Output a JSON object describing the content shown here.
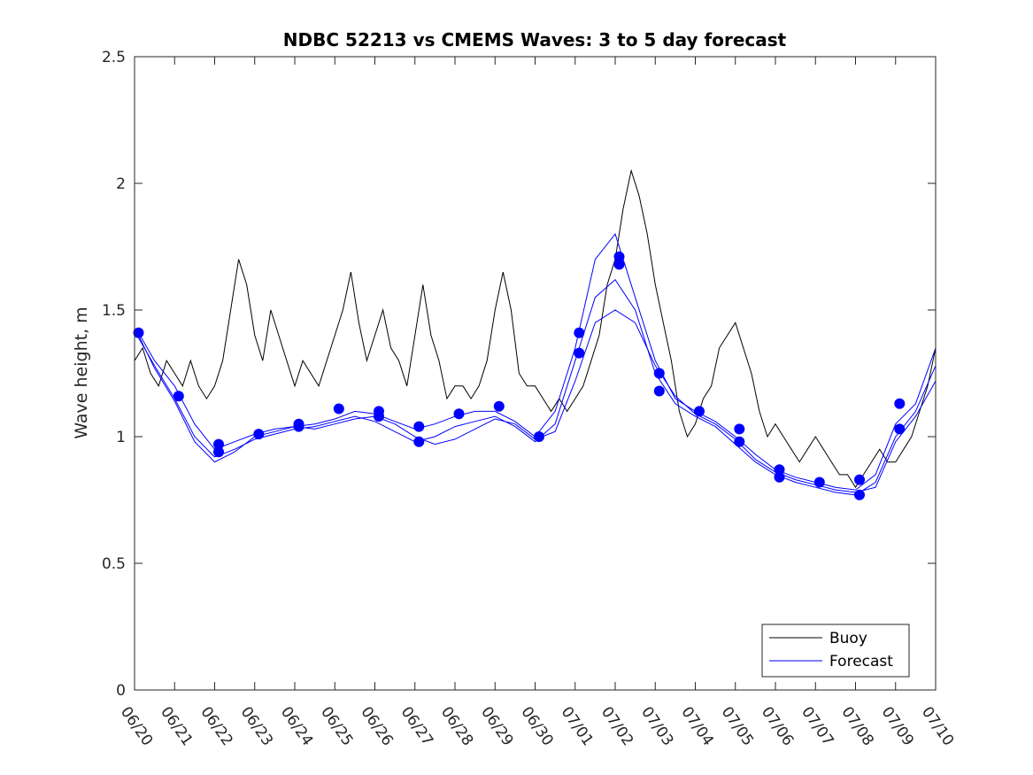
{
  "chart_data": {
    "type": "line",
    "title": "NDBC 52213 vs CMEMS Waves: 3 to 5 day forecast",
    "xlabel": "",
    "ylabel": "Wave height, m",
    "ylim": [
      0,
      2.5
    ],
    "xlim": [
      0,
      20
    ],
    "y_ticks": [
      "0",
      "0.5",
      "1",
      "1.5",
      "2",
      "2.5"
    ],
    "x_ticks": [
      "06/20",
      "06/21",
      "06/22",
      "06/23",
      "06/24",
      "06/25",
      "06/26",
      "06/27",
      "06/28",
      "06/29",
      "06/30",
      "07/01",
      "07/02",
      "07/03",
      "07/04",
      "07/05",
      "07/06",
      "07/07",
      "07/08",
      "07/09",
      "07/10"
    ],
    "grid": false,
    "legend_position": "bottom-right",
    "colors": {
      "buoy": "#000000",
      "forecast": "#0000ff"
    },
    "series": [
      {
        "name": "Buoy",
        "x": [
          0,
          0.2,
          0.4,
          0.6,
          0.8,
          1.0,
          1.2,
          1.4,
          1.6,
          1.8,
          2.0,
          2.2,
          2.4,
          2.6,
          2.8,
          3.0,
          3.2,
          3.4,
          3.6,
          3.8,
          4.0,
          4.2,
          4.4,
          4.6,
          4.8,
          5.0,
          5.2,
          5.4,
          5.6,
          5.8,
          6.0,
          6.2,
          6.4,
          6.6,
          6.8,
          7.0,
          7.2,
          7.4,
          7.6,
          7.8,
          8.0,
          8.2,
          8.4,
          8.6,
          8.8,
          9.0,
          9.2,
          9.4,
          9.6,
          9.8,
          10.0,
          10.2,
          10.4,
          10.6,
          10.8,
          11.0,
          11.2,
          11.4,
          11.6,
          11.8,
          12.0,
          12.2,
          12.4,
          12.6,
          12.8,
          13.0,
          13.2,
          13.4,
          13.6,
          13.8,
          14.0,
          14.2,
          14.4,
          14.6,
          14.8,
          15.0,
          15.2,
          15.4,
          15.6,
          15.8,
          16.0,
          16.2,
          16.4,
          16.6,
          16.8,
          17.0,
          17.2,
          17.4,
          17.6,
          17.8,
          18.0,
          18.2,
          18.4,
          18.6,
          18.8,
          19.0,
          19.2,
          19.4,
          19.6,
          19.8,
          20.0
        ],
        "y": [
          1.3,
          1.35,
          1.25,
          1.2,
          1.3,
          1.25,
          1.2,
          1.3,
          1.2,
          1.15,
          1.2,
          1.3,
          1.5,
          1.7,
          1.6,
          1.4,
          1.3,
          1.5,
          1.4,
          1.3,
          1.2,
          1.3,
          1.25,
          1.2,
          1.3,
          1.4,
          1.5,
          1.65,
          1.45,
          1.3,
          1.4,
          1.5,
          1.35,
          1.3,
          1.2,
          1.4,
          1.6,
          1.4,
          1.3,
          1.15,
          1.2,
          1.2,
          1.15,
          1.2,
          1.3,
          1.5,
          1.65,
          1.5,
          1.25,
          1.2,
          1.2,
          1.15,
          1.1,
          1.15,
          1.1,
          1.15,
          1.2,
          1.3,
          1.4,
          1.6,
          1.7,
          1.9,
          2.05,
          1.95,
          1.8,
          1.6,
          1.45,
          1.3,
          1.1,
          1.0,
          1.05,
          1.15,
          1.2,
          1.35,
          1.4,
          1.45,
          1.35,
          1.25,
          1.1,
          1.0,
          1.05,
          1.0,
          0.95,
          0.9,
          0.95,
          1.0,
          0.95,
          0.9,
          0.85,
          0.85,
          0.8,
          0.85,
          0.9,
          0.95,
          0.9,
          0.9,
          0.95,
          1.0,
          1.1,
          1.2,
          1.35
        ]
      },
      {
        "name": "Forecast",
        "x": [
          0.1,
          0.5,
          1.0,
          1.5,
          2.0,
          2.5,
          3.0,
          3.5,
          4.0,
          4.5,
          5.0,
          5.5,
          6.0,
          6.5,
          7.0,
          7.5,
          8.0,
          8.5,
          9.0,
          9.5,
          10.0,
          10.5,
          11.0,
          11.5,
          12.0,
          12.5,
          13.0,
          13.5,
          14.0,
          14.5,
          15.0,
          15.5,
          16.0,
          16.5,
          17.0,
          17.5,
          18.0,
          18.5,
          19.0,
          19.5,
          20.0
        ],
        "y": [
          1.41,
          1.3,
          1.2,
          1.05,
          0.95,
          0.98,
          1.01,
          1.03,
          1.04,
          1.05,
          1.07,
          1.1,
          1.09,
          1.06,
          1.03,
          1.05,
          1.08,
          1.1,
          1.1,
          1.06,
          1.0,
          1.1,
          1.35,
          1.7,
          1.8,
          1.55,
          1.3,
          1.15,
          1.1,
          1.06,
          1.0,
          0.93,
          0.87,
          0.84,
          0.82,
          0.8,
          0.79,
          0.85,
          1.05,
          1.13,
          1.35
        ]
      },
      {
        "name": "",
        "x": [
          0.1,
          0.5,
          1.0,
          1.5,
          2.0,
          2.5,
          3.0,
          3.5,
          4.0,
          4.5,
          5.0,
          5.5,
          6.0,
          6.5,
          7.0,
          7.5,
          8.0,
          8.5,
          9.0,
          9.5,
          10.0,
          10.5,
          11.0,
          11.5,
          12.0,
          12.5,
          13.0,
          13.5,
          14.0,
          14.5,
          15.0,
          15.5,
          16.0,
          16.5,
          17.0,
          17.5,
          18.0,
          18.5,
          19.0,
          19.5,
          20.0
        ],
        "y": [
          1.39,
          1.28,
          1.15,
          1.0,
          0.92,
          0.95,
          0.99,
          1.01,
          1.03,
          1.04,
          1.06,
          1.08,
          1.06,
          1.02,
          0.98,
          1.0,
          1.04,
          1.06,
          1.08,
          1.04,
          0.98,
          1.05,
          1.3,
          1.55,
          1.62,
          1.5,
          1.25,
          1.13,
          1.08,
          1.04,
          0.97,
          0.9,
          0.85,
          0.82,
          0.8,
          0.78,
          0.77,
          0.82,
          1.0,
          1.1,
          1.28
        ]
      },
      {
        "name": "",
        "x": [
          0.1,
          0.5,
          1.0,
          1.5,
          2.0,
          2.5,
          3.0,
          3.5,
          4.0,
          4.5,
          5.0,
          5.5,
          6.0,
          6.5,
          7.0,
          7.5,
          8.0,
          8.5,
          9.0,
          9.5,
          10.0,
          10.5,
          11.0,
          11.5,
          12.0,
          12.5,
          13.0,
          13.5,
          14.0,
          14.5,
          15.0,
          15.5,
          16.0,
          16.5,
          17.0,
          17.5,
          18.0,
          18.5,
          19.0,
          19.5,
          20.0
        ],
        "y": [
          1.4,
          1.27,
          1.14,
          0.98,
          0.9,
          0.94,
          1.0,
          1.02,
          1.04,
          1.03,
          1.05,
          1.07,
          1.08,
          1.05,
          1.0,
          0.97,
          0.99,
          1.03,
          1.07,
          1.05,
          0.99,
          1.02,
          1.22,
          1.45,
          1.5,
          1.45,
          1.28,
          1.16,
          1.09,
          1.05,
          0.99,
          0.91,
          0.86,
          0.83,
          0.81,
          0.79,
          0.78,
          0.8,
          0.98,
          1.08,
          1.22
        ]
      }
    ],
    "markers": {
      "x": [
        0.1,
        1.1,
        2.1,
        2.1,
        3.1,
        4.1,
        4.1,
        5.1,
        6.1,
        6.1,
        7.1,
        7.1,
        8.1,
        9.1,
        10.1,
        11.1,
        11.1,
        12.1,
        12.1,
        13.1,
        13.1,
        14.1,
        15.1,
        15.1,
        16.1,
        16.1,
        17.1,
        18.1,
        18.1,
        19.1,
        19.1
      ],
      "y": [
        1.41,
        1.16,
        0.97,
        0.94,
        1.01,
        1.05,
        1.04,
        1.11,
        1.1,
        1.08,
        1.04,
        0.98,
        1.09,
        1.12,
        1.0,
        1.41,
        1.33,
        1.71,
        1.68,
        1.25,
        1.18,
        1.1,
        1.03,
        0.98,
        0.87,
        0.84,
        0.82,
        0.83,
        0.77,
        1.13,
        1.03
      ]
    }
  }
}
